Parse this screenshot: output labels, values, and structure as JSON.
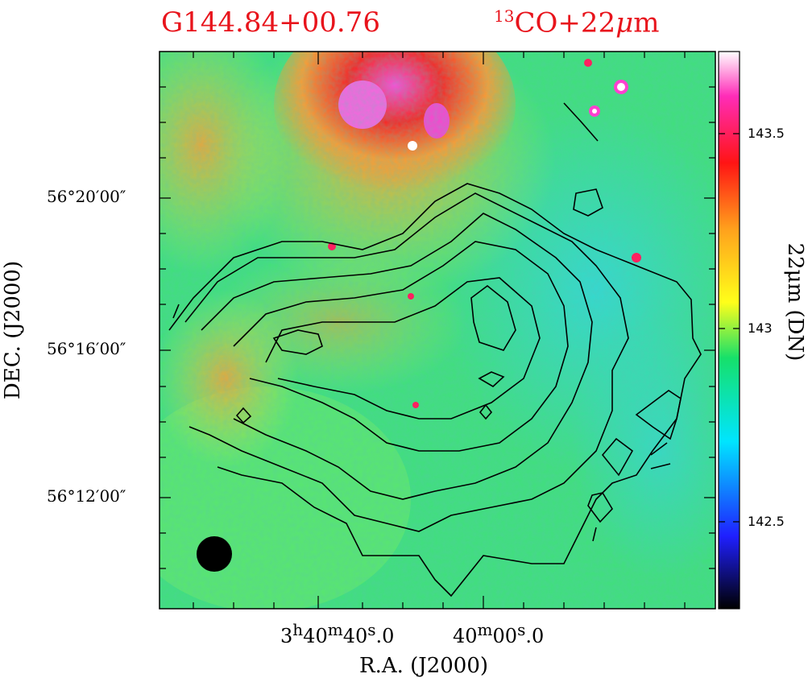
{
  "header": {
    "source_name": "G144.84+00.76",
    "band_iso": "13",
    "band_rest": "CO+22",
    "band_mu": "μ",
    "band_unit": "m"
  },
  "axes": {
    "y_title": "DEC. (J2000)",
    "x_title": "R.A. (J2000)",
    "y_ticks": [
      "56°20′00″",
      "56°16′00″",
      "56°12′00″"
    ],
    "x_ticks": [
      {
        "h": "3",
        "m": "40",
        "s": "40",
        "frac": "0"
      },
      {
        "h": "",
        "m": "40",
        "s": "00",
        "frac": "0"
      }
    ]
  },
  "colorbar": {
    "title": "22μm (DN)",
    "ticks": [
      "143.5",
      "143",
      "142.5"
    ],
    "colors": [
      "#000000",
      "#1f1fff",
      "#00e5ff",
      "#16e06a",
      "#ffff1a",
      "#ffa21c",
      "#ff1414",
      "#ff2cb8",
      "#ffffff"
    ]
  },
  "image": {
    "background_colors": [
      "#33e27a",
      "#9af04a",
      "#ffb040",
      "#ff3030",
      "#ff40d0",
      "#40e0e0"
    ],
    "beam_color": "#000000",
    "contour_color": "#000000"
  }
}
